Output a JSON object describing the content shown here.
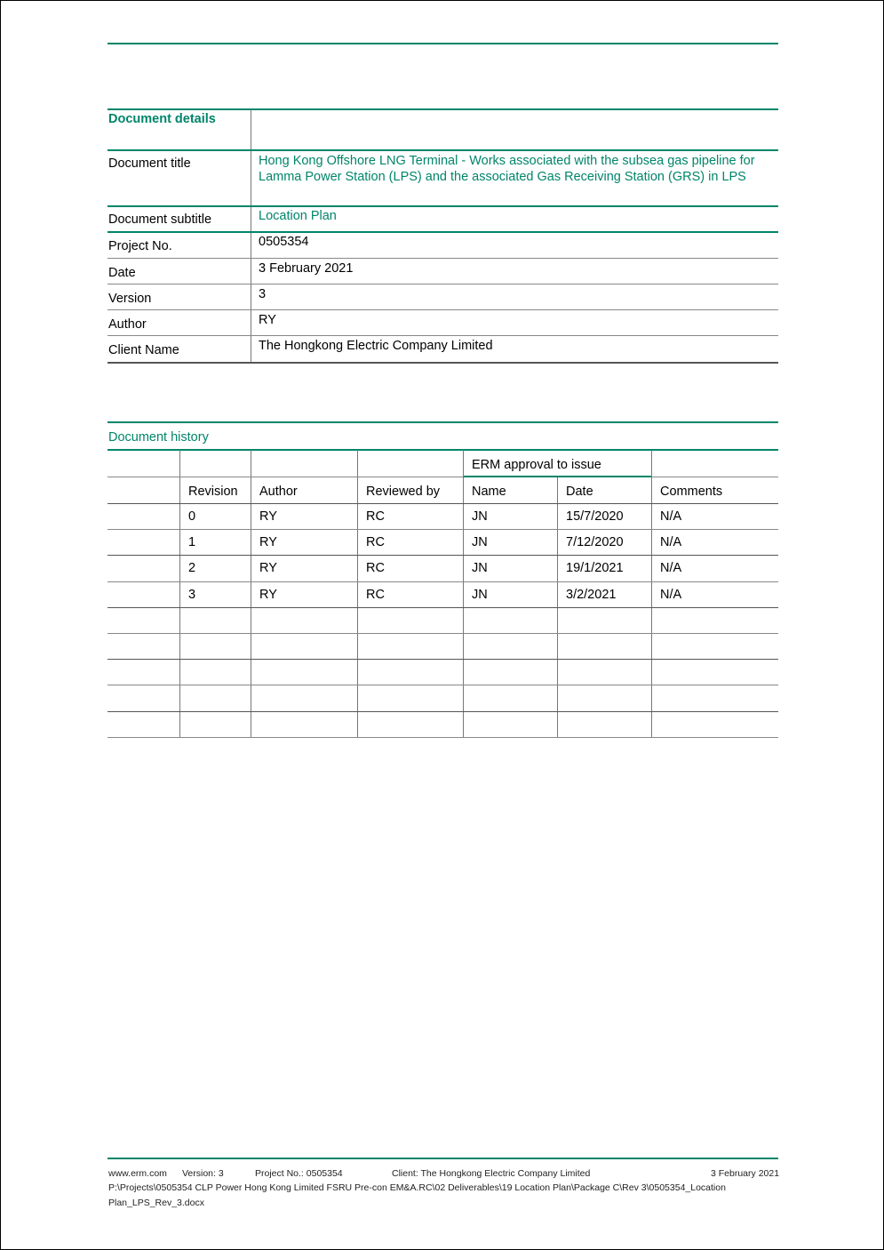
{
  "details": {
    "heading": "Document details",
    "rows": [
      {
        "label": "Document title",
        "value": "Hong Kong Offshore LNG Terminal - Works associated with the subsea gas pipeline for Lamma Power Station (LPS) and the associated Gas Receiving Station (GRS) in LPS"
      },
      {
        "label": "Document subtitle",
        "value": "Location Plan"
      },
      {
        "label": "Project No.",
        "value": "0505354"
      },
      {
        "label": "Date",
        "value": "3 February 2021"
      },
      {
        "label": "Version",
        "value": "3"
      },
      {
        "label": "Author",
        "value": "RY"
      },
      {
        "label": "Client Name",
        "value": "The Hongkong Electric Company Limited"
      }
    ]
  },
  "history": {
    "heading": "Document history",
    "group_header": "ERM approval to issue",
    "columns": [
      "",
      "Revision",
      "Author",
      "Reviewed by",
      "Name",
      "Date",
      "Comments"
    ],
    "rows": [
      [
        "",
        "0",
        "RY",
        "RC",
        "JN",
        "15/7/2020",
        "N/A"
      ],
      [
        "",
        "1",
        "RY",
        "RC",
        "JN",
        "7/12/2020",
        "N/A"
      ],
      [
        "",
        "2",
        "RY",
        "RC",
        "JN",
        "19/1/2021",
        "N/A"
      ],
      [
        "",
        "3",
        "RY",
        "RC",
        "JN",
        "3/2/2021",
        "N/A"
      ]
    ]
  },
  "footer": {
    "site": "www.erm.com",
    "version": "Version: 3",
    "project": "Project No.: 0505354",
    "client": "Client: The Hongkong Electric Company Limited",
    "date": "3 February 2021",
    "path1": "P:\\Projects\\0505354 CLP Power Hong Kong Limited FSRU Pre-con EM&A.RC\\02 Deliverables\\19 Location Plan\\Package C\\Rev 3\\0505354_Location",
    "path2": "Plan_LPS_Rev_3.docx"
  },
  "colors": {
    "accent": "#00856a"
  }
}
